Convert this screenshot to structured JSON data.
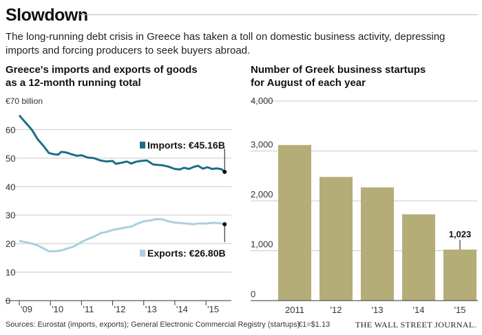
{
  "headline": "Slowdown",
  "dek": "The long-running debt crisis in Greece has taken a toll on domestic business activity, depressing imports and forcing producers to seek buyers abroad.",
  "colors": {
    "imports": "#1a6f86",
    "exports": "#a9cfe0",
    "bars": "#b5ad78",
    "grid": "#c8c8c8"
  },
  "footer": {
    "sources": "Sources: Eurostat (imports, exports); General Electronic Commercial Registry (startups)",
    "conversion": "€1=$1.13",
    "brand": "THE WALL STREET JOURNAL."
  },
  "chart_data": [
    {
      "type": "line",
      "title_line1": "Greece's imports and exports of goods",
      "title_line2": "as a 12-month running total",
      "unit_label": "€70 billion",
      "ylim": [
        0,
        70
      ],
      "yticks": [
        0,
        10,
        20,
        30,
        40,
        50,
        60
      ],
      "xlim": [
        2009.0,
        2015.75
      ],
      "xticks": [
        {
          "v": 2009,
          "label": "'09"
        },
        {
          "v": 2010,
          "label": "'10"
        },
        {
          "v": 2011,
          "label": "'11"
        },
        {
          "v": 2012,
          "label": "'12"
        },
        {
          "v": 2013,
          "label": "'13"
        },
        {
          "v": 2014,
          "label": "'14"
        },
        {
          "v": 2015,
          "label": "'15"
        }
      ],
      "series": [
        {
          "name": "Imports",
          "label": "Imports: €45.16B",
          "end_value": 45.16,
          "points": [
            [
              2009.0,
              65.0
            ],
            [
              2009.2,
              62.5
            ],
            [
              2009.4,
              60.0
            ],
            [
              2009.6,
              56.5
            ],
            [
              2009.8,
              54.0
            ],
            [
              2009.95,
              51.8
            ],
            [
              2010.1,
              51.4
            ],
            [
              2010.25,
              51.2
            ],
            [
              2010.35,
              52.2
            ],
            [
              2010.5,
              52.0
            ],
            [
              2010.7,
              51.3
            ],
            [
              2010.85,
              50.8
            ],
            [
              2011.0,
              51.0
            ],
            [
              2011.2,
              50.2
            ],
            [
              2011.4,
              50.0
            ],
            [
              2011.6,
              49.2
            ],
            [
              2011.8,
              48.8
            ],
            [
              2012.0,
              49.0
            ],
            [
              2012.1,
              48.0
            ],
            [
              2012.3,
              48.4
            ],
            [
              2012.45,
              48.8
            ],
            [
              2012.6,
              48.1
            ],
            [
              2012.75,
              48.7
            ],
            [
              2012.9,
              49.0
            ],
            [
              2013.1,
              49.2
            ],
            [
              2013.3,
              47.8
            ],
            [
              2013.45,
              47.6
            ],
            [
              2013.6,
              47.5
            ],
            [
              2013.8,
              47.0
            ],
            [
              2014.0,
              46.2
            ],
            [
              2014.15,
              46.0
            ],
            [
              2014.3,
              46.6
            ],
            [
              2014.45,
              46.2
            ],
            [
              2014.6,
              46.9
            ],
            [
              2014.75,
              47.3
            ],
            [
              2014.9,
              46.3
            ],
            [
              2015.05,
              46.8
            ],
            [
              2015.2,
              46.2
            ],
            [
              2015.35,
              46.4
            ],
            [
              2015.5,
              46.1
            ],
            [
              2015.6,
              45.16
            ]
          ]
        },
        {
          "name": "Exports",
          "label": "Exports: €26.80B",
          "end_value": 26.8,
          "points": [
            [
              2009.0,
              21.0
            ],
            [
              2009.2,
              20.5
            ],
            [
              2009.4,
              20.0
            ],
            [
              2009.6,
              19.3
            ],
            [
              2009.8,
              18.2
            ],
            [
              2009.95,
              17.3
            ],
            [
              2010.15,
              17.3
            ],
            [
              2010.35,
              17.6
            ],
            [
              2010.55,
              18.3
            ],
            [
              2010.75,
              19.0
            ],
            [
              2011.0,
              20.6
            ],
            [
              2011.2,
              21.6
            ],
            [
              2011.4,
              22.4
            ],
            [
              2011.6,
              23.6
            ],
            [
              2011.8,
              24.1
            ],
            [
              2012.0,
              24.8
            ],
            [
              2012.2,
              25.2
            ],
            [
              2012.4,
              25.6
            ],
            [
              2012.6,
              26.0
            ],
            [
              2012.8,
              27.0
            ],
            [
              2013.0,
              27.8
            ],
            [
              2013.2,
              28.1
            ],
            [
              2013.4,
              28.6
            ],
            [
              2013.6,
              28.5
            ],
            [
              2013.8,
              27.8
            ],
            [
              2014.0,
              27.4
            ],
            [
              2014.2,
              27.2
            ],
            [
              2014.4,
              27.0
            ],
            [
              2014.6,
              26.8
            ],
            [
              2014.8,
              27.1
            ],
            [
              2015.0,
              27.0
            ],
            [
              2015.2,
              27.3
            ],
            [
              2015.4,
              27.2
            ],
            [
              2015.6,
              26.8
            ]
          ]
        }
      ]
    },
    {
      "type": "bar",
      "title_line1": "Number of Greek business startups",
      "title_line2": "for August of each year",
      "ylim": [
        0,
        4000
      ],
      "yticks": [
        {
          "v": 0,
          "label": "0"
        },
        {
          "v": 1000,
          "label": "1,000"
        },
        {
          "v": 2000,
          "label": "2,000"
        },
        {
          "v": 3000,
          "label": "3,000"
        },
        {
          "v": 4000,
          "label": "4,000"
        }
      ],
      "categories": [
        "2011",
        "'12",
        "'13",
        "'14",
        "'15"
      ],
      "values": [
        3120,
        2480,
        2270,
        1730,
        1023
      ],
      "annotation": {
        "index": 4,
        "label": "1,023"
      }
    }
  ]
}
